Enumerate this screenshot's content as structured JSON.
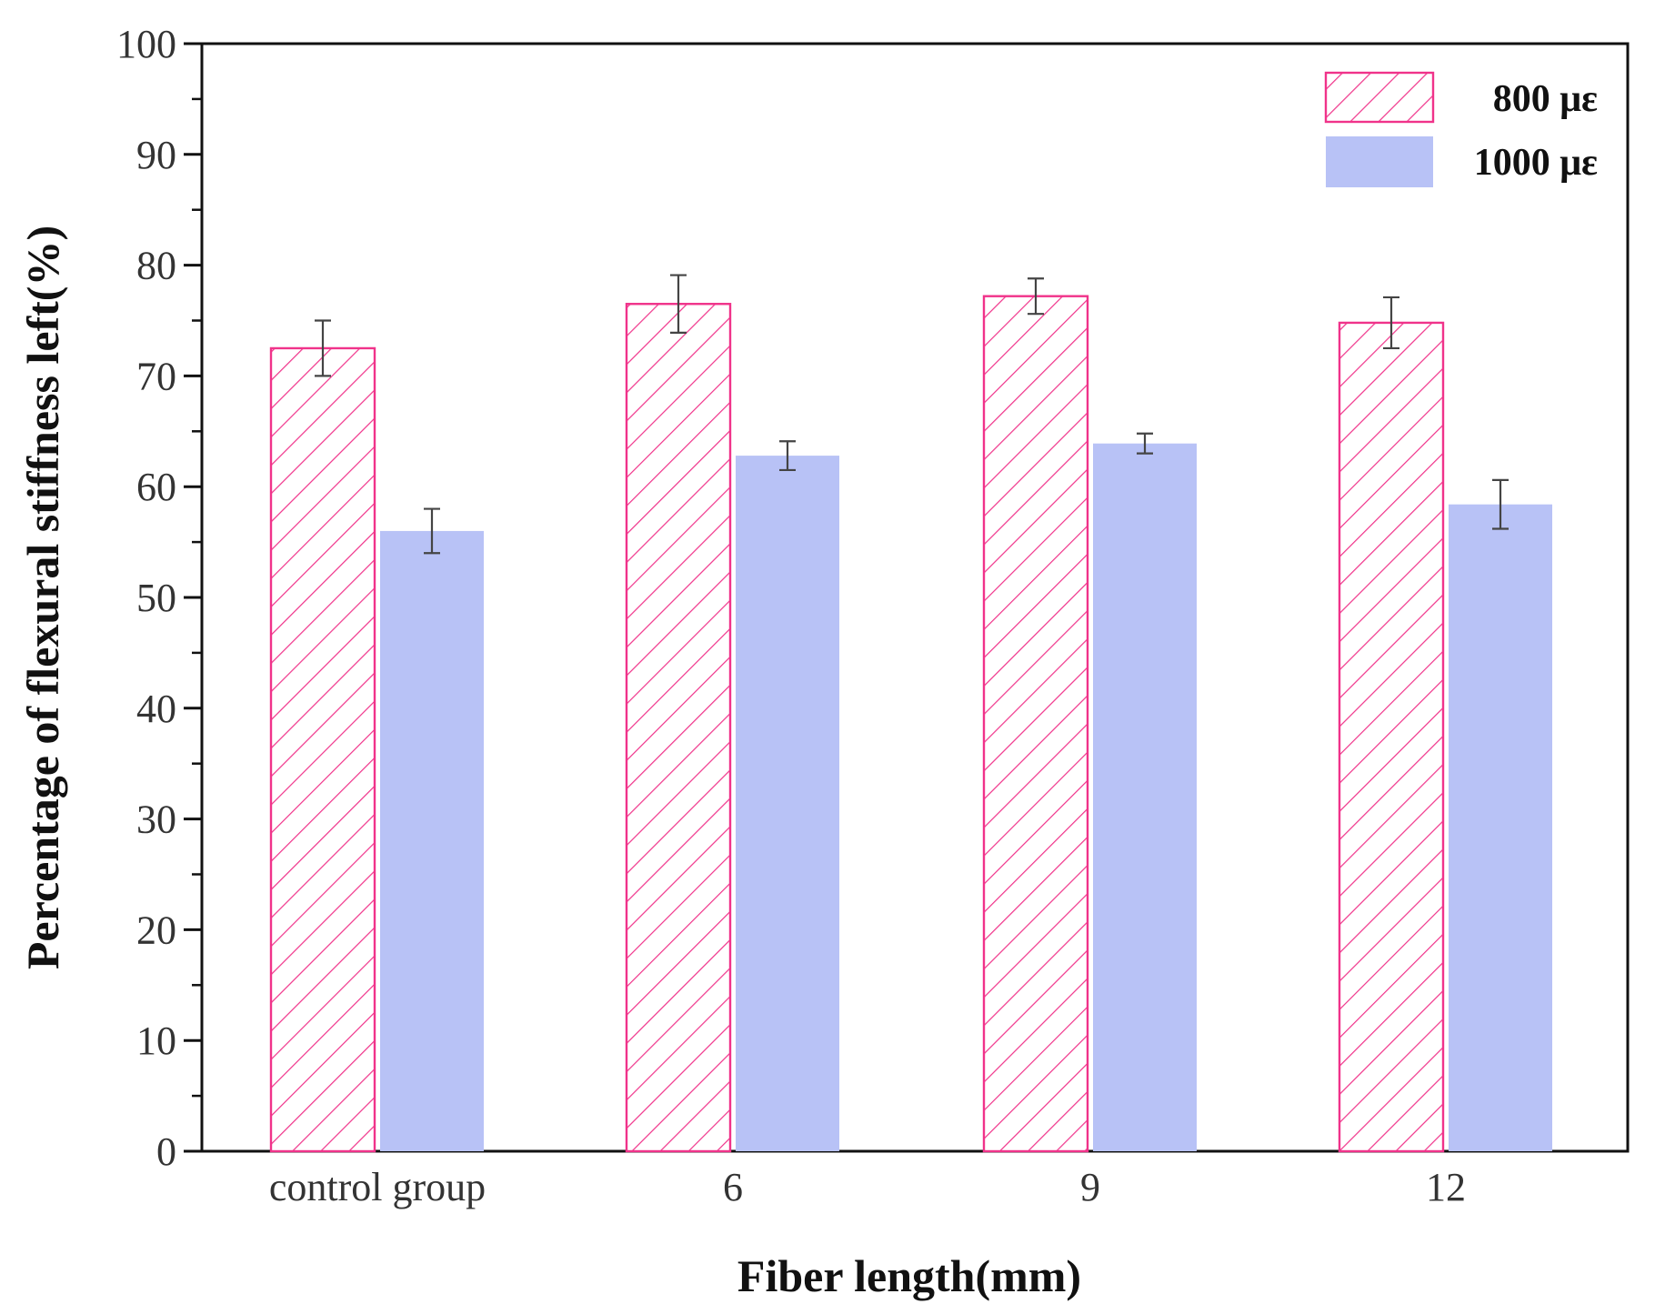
{
  "chart_data": {
    "type": "bar",
    "title": "",
    "xlabel": "Fiber length(mm)",
    "ylabel": "Percentage of flexural stiffness left(%)",
    "ylim": [
      0,
      100
    ],
    "yticks": [
      0,
      10,
      20,
      30,
      40,
      50,
      60,
      70,
      80,
      90,
      100
    ],
    "categories": [
      "control group",
      "6",
      "9",
      "12"
    ],
    "legend_position": "top-right",
    "grid": false,
    "series": [
      {
        "name": "800 με",
        "style": "hatched",
        "color": "#f0338a",
        "values": [
          72.5,
          76.5,
          77.2,
          74.8
        ],
        "errors": [
          2.5,
          2.6,
          1.6,
          2.3
        ]
      },
      {
        "name": "1000 με",
        "style": "solid",
        "color": "#b8c2f6",
        "values": [
          56.0,
          62.8,
          63.9,
          58.4
        ],
        "errors": [
          2.0,
          1.3,
          0.9,
          2.2
        ]
      }
    ]
  }
}
